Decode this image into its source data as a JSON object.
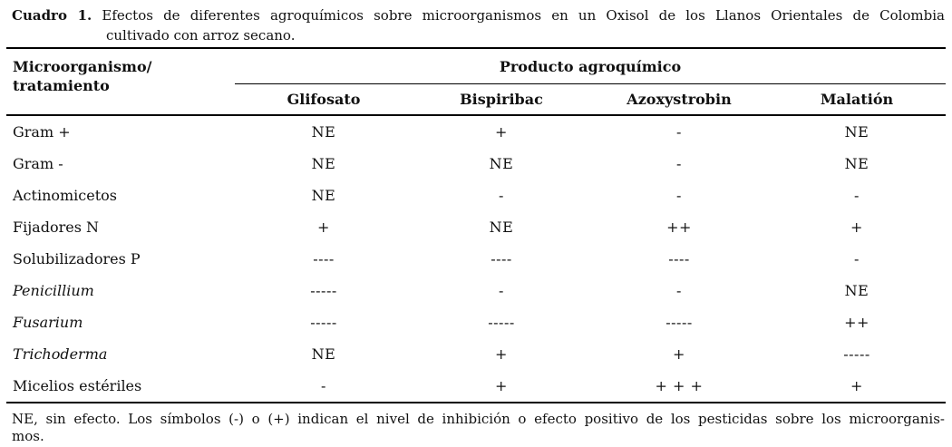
{
  "caption": {
    "label": "Cuadro 1.",
    "line1": "Efectos de diferentes agroquímicos sobre microorganismos en un Oxisol de los Llanos Orientales de Colombia",
    "line2": "cultivado con arroz secano."
  },
  "table": {
    "row_header": {
      "line1": "Microorganismo/",
      "line2": "tratamiento"
    },
    "group_header": "Producto agroquímico",
    "columns": [
      "Glifosato",
      "Bispiribac",
      "Azoxystrobin",
      "Malatión"
    ],
    "rows": [
      {
        "label": "Gram +",
        "italic": false,
        "values": [
          "NE",
          "+",
          "-",
          "NE"
        ]
      },
      {
        "label": "Gram -",
        "italic": false,
        "values": [
          "NE",
          "NE",
          "-",
          "NE"
        ]
      },
      {
        "label": "Actinomicetos",
        "italic": false,
        "values": [
          "NE",
          "-",
          "-",
          "-"
        ]
      },
      {
        "label": "Fijadores N",
        "italic": false,
        "values": [
          "+",
          "NE",
          "++",
          "+"
        ]
      },
      {
        "label": "Solubilizadores P",
        "italic": false,
        "values": [
          "----",
          "----",
          "----",
          "-"
        ]
      },
      {
        "label": "Penicillium",
        "italic": true,
        "values": [
          "-----",
          "-",
          "-",
          "NE"
        ]
      },
      {
        "label": "Fusarium",
        "italic": true,
        "values": [
          "-----",
          "-----",
          "-----",
          "++"
        ]
      },
      {
        "label": "Trichoderma",
        "italic": true,
        "values": [
          "NE",
          "+",
          "+",
          "-----"
        ]
      },
      {
        "label": "Micelios estériles",
        "italic": false,
        "values": [
          "-",
          "+",
          "+ + +",
          "+"
        ]
      }
    ]
  },
  "footnote": {
    "line1": "NE, sin efecto. Los símbolos (-) o (+) indican el nivel de inhibición o efecto positivo de los pesticidas sobre los microorganis-",
    "line2": "mos."
  }
}
